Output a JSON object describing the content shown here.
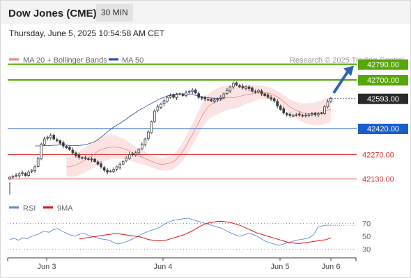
{
  "header": {
    "title": "Dow Jones (CME)",
    "timeframe": "30 MIN"
  },
  "datetime": "Thursday, June 5, 2025 10:54:58 AM CET",
  "colors": {
    "resistance": "#56a70a",
    "pivot": "#1a5ec9",
    "support": "#e02a2a",
    "candle": "#3a3a3a",
    "bollinger": "#fbdede",
    "ma20": "#f08080",
    "ma50": "#1c4a99",
    "rsi": "#5b87dd",
    "rsi_ma": "#dd1111",
    "arrow": "#2f63b0",
    "current": "#2a2a2a"
  },
  "chart_data": [
    {
      "type": "candlestick",
      "legend": [
        {
          "label": "MA 20 + Bollinger Bands",
          "color": "#f08080"
        },
        {
          "label": "MA 50",
          "color": "#1c4a99"
        }
      ],
      "credit": "Research © 2025 Trading Central",
      "x_ticks": [
        "Jun 3",
        "Jun 4",
        "Jun 5",
        "Jun 6"
      ],
      "ylim": [
        42080,
        42840
      ],
      "levels": [
        {
          "value": 42790,
          "label": "42790.00",
          "kind": "resistance"
        },
        {
          "value": 42700,
          "label": "42700.00",
          "kind": "resistance"
        },
        {
          "value": 42593,
          "label": "42593.00",
          "kind": "current"
        },
        {
          "value": 42420,
          "label": "42420.00",
          "kind": "pivot"
        },
        {
          "value": 42270,
          "label": "42270.00",
          "kind": "support"
        },
        {
          "value": 42130,
          "label": "42130.00",
          "kind": "support"
        }
      ],
      "price": [
        42140,
        42145,
        42150,
        42160,
        42165,
        42150,
        42170,
        42180,
        42200,
        42250,
        42330,
        42360,
        42370,
        42380,
        42360,
        42350,
        42335,
        42320,
        42310,
        42300,
        42280,
        42265,
        42255,
        42250,
        42250,
        42245,
        42240,
        42230,
        42215,
        42200,
        42180,
        42170,
        42175,
        42185,
        42200,
        42215,
        42230,
        42250,
        42270,
        42275,
        42280,
        42300,
        42330,
        42360,
        42400,
        42460,
        42520,
        42545,
        42560,
        42580,
        42600,
        42610,
        42600,
        42615,
        42620,
        42610,
        42625,
        42635,
        42640,
        42625,
        42600,
        42595,
        42590,
        42585,
        42580,
        42585,
        42590,
        42600,
        42620,
        42640,
        42660,
        42680,
        42670,
        42660,
        42655,
        42660,
        42650,
        42635,
        42630,
        42640,
        42620,
        42610,
        42600,
        42590,
        42580,
        42550,
        42530,
        42510,
        42500,
        42495,
        42497,
        42500,
        42498,
        42495,
        42497,
        42500,
        42505,
        42500,
        42505,
        42510,
        42545,
        42575,
        42593
      ],
      "ma20": [
        42200,
        42200,
        42205,
        42210,
        42220,
        42230,
        42240,
        42252,
        42262,
        42275,
        42290,
        42300,
        42305,
        42310,
        42312,
        42314,
        42312,
        42310,
        42305,
        42300,
        42290,
        42280,
        42270,
        42262,
        42255,
        42248,
        42240,
        42232,
        42225,
        42218,
        42215,
        42215,
        42218,
        42222,
        42230,
        42245,
        42265,
        42290,
        42320,
        42355,
        42385,
        42420,
        42455,
        42490,
        42520,
        42545,
        42560,
        42570,
        42578,
        42585,
        42592,
        42598,
        42600,
        42598,
        42600,
        42605,
        42610,
        42614,
        42617,
        42620,
        42625,
        42628,
        42628,
        42628,
        42625,
        42620,
        42612,
        42602,
        42590,
        42575,
        42560,
        42545,
        42535,
        42525,
        42518,
        42512,
        42508,
        42506,
        42505,
        42506,
        42508,
        42512,
        42518,
        42525,
        42533
      ],
      "ma50": [
        42320,
        42320,
        42321,
        42322,
        42322,
        42323,
        42324,
        42325,
        42326,
        42326,
        42325,
        42323,
        42322,
        42322,
        42323,
        42325,
        42328,
        42332,
        42338,
        42345,
        42355,
        42370,
        42385,
        42400,
        42415,
        42428,
        42440,
        42450,
        42462,
        42475,
        42488,
        42500,
        42512,
        42525,
        42535,
        42545,
        42555,
        42565,
        42575,
        42585,
        42593,
        42600,
        42608,
        42613,
        42617,
        42620,
        42620,
        42620,
        42619,
        42618,
        42616,
        42612,
        42608,
        42604,
        42600,
        42598,
        42596,
        42595,
        42594,
        42593,
        42593
      ]
    },
    {
      "type": "line",
      "legend": [
        {
          "label": "RSI",
          "color": "#5b87dd"
        },
        {
          "label": "9MA",
          "color": "#dd1111"
        }
      ],
      "y_ticks": [
        "70",
        "50",
        "30"
      ],
      "ylim": [
        20,
        80
      ],
      "overbought": 70,
      "oversold": 30,
      "rsi": [
        45,
        47,
        44,
        48,
        46,
        50,
        52,
        55,
        58,
        56,
        60,
        62,
        58,
        55,
        52,
        50,
        53,
        55,
        52,
        50,
        48,
        46,
        45,
        44,
        40,
        38,
        40,
        42,
        45,
        48,
        52,
        55,
        58,
        60,
        62,
        66,
        70,
        73,
        75,
        76,
        77,
        78,
        76,
        74,
        72,
        70,
        68,
        66,
        64,
        62,
        58,
        55,
        52,
        50,
        52,
        55,
        53,
        50,
        46,
        42,
        40,
        38,
        36,
        38,
        40,
        42,
        44,
        45,
        46,
        48,
        52,
        64,
        66,
        67,
        67
      ],
      "rsi_ma": [
        46,
        47,
        48,
        49,
        50,
        51,
        52,
        53,
        54,
        54,
        53,
        52,
        51,
        50,
        49,
        47,
        45,
        44,
        43,
        43,
        44,
        46,
        48,
        50,
        52,
        55,
        58,
        62,
        66,
        69,
        71,
        72,
        73,
        73,
        72,
        71,
        69,
        67,
        64,
        61,
        58,
        55,
        53,
        51,
        49,
        47,
        45,
        43,
        41,
        40,
        39,
        39,
        40,
        41,
        42,
        43,
        44,
        45,
        48
      ]
    }
  ]
}
